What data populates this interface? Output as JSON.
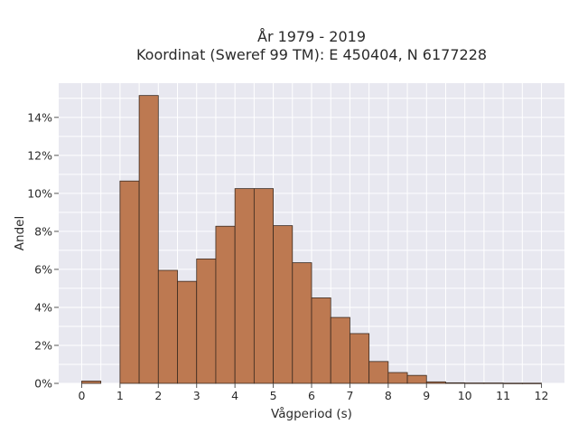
{
  "chart_data": {
    "type": "bar",
    "title_lines": [
      "År 1979 - 2019",
      "Koordinat (Sweref 99 TM): E 450404, N 6177228"
    ],
    "xlabel": "Vågperiod (s)",
    "ylabel": "Andel",
    "bin_width": 0.5,
    "x": [
      0,
      0.5,
      1,
      1.5,
      2,
      2.5,
      3,
      3.5,
      4,
      4.5,
      5,
      5.5,
      6,
      6.5,
      7,
      7.5,
      8,
      8.5,
      9,
      9.5,
      10,
      10.5,
      11,
      11.5
    ],
    "values": [
      0.12,
      0,
      10.65,
      15.15,
      5.95,
      5.37,
      6.55,
      8.27,
      10.25,
      10.25,
      8.3,
      6.35,
      4.5,
      3.47,
      2.62,
      1.15,
      0.57,
      0.42,
      0.08,
      0.03,
      0.02,
      0.02,
      0.01,
      0.01
    ],
    "xticks": [
      "0",
      "1",
      "2",
      "3",
      "4",
      "5",
      "6",
      "7",
      "8",
      "9",
      "10",
      "11",
      "12"
    ],
    "yticks": [
      "0%",
      "2%",
      "4%",
      "6%",
      "8%",
      "10%",
      "12%",
      "14%"
    ],
    "xlim": [
      -0.6,
      12.6
    ],
    "ylim": [
      0,
      15.8
    ],
    "grid": true,
    "colors": {
      "bar_fill": "#bd7951",
      "bar_edge": "#3a2a20",
      "plot_bg": "#e8e8f0",
      "grid": "#ffffff"
    }
  }
}
